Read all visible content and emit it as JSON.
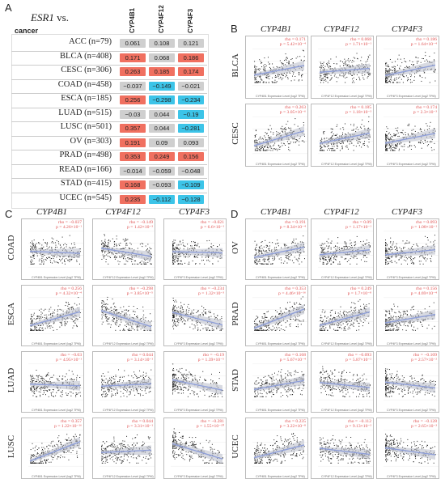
{
  "panel_letters": {
    "a": "A",
    "b": "B",
    "c": "C",
    "d": "D"
  },
  "heatmap": {
    "title_gene": "ESR1",
    "title_suffix": "vs.",
    "cancer_header": "cancer",
    "columns": [
      "CYP4B1",
      "CYP4F12",
      "CYP4F3"
    ],
    "rows": [
      {
        "label": "ACC (n=79)",
        "values": [
          "0.061",
          "0.108",
          "0.121"
        ],
        "colors": [
          "#cfcfcf",
          "#cfcfcf",
          "#cfcfcf"
        ]
      },
      {
        "label": "BLCA (n=408)",
        "values": [
          "0.171",
          "0.068",
          "0.186"
        ],
        "colors": [
          "#f07060",
          "#cfcfcf",
          "#f07060"
        ]
      },
      {
        "label": "CESC (n=306)",
        "values": [
          "0.263",
          "0.185",
          "0.174"
        ],
        "colors": [
          "#f07060",
          "#f07060",
          "#f07060"
        ]
      },
      {
        "label": "COAD (n=458)",
        "values": [
          "−0.037",
          "−0.149",
          "−0.021"
        ],
        "colors": [
          "#cfcfcf",
          "#3cc4e8",
          "#cfcfcf"
        ]
      },
      {
        "label": "ESCA (n=185)",
        "values": [
          "0.256",
          "−0.298",
          "−0.234"
        ],
        "colors": [
          "#f07060",
          "#3cc4e8",
          "#3cc4e8"
        ]
      },
      {
        "label": "LUAD (n=515)",
        "values": [
          "−0.03",
          "0.044",
          "−0.19"
        ],
        "colors": [
          "#cfcfcf",
          "#cfcfcf",
          "#3cc4e8"
        ]
      },
      {
        "label": "LUSC (n=501)",
        "values": [
          "0.357",
          "0.044",
          "−0.281"
        ],
        "colors": [
          "#f07060",
          "#cfcfcf",
          "#3cc4e8"
        ]
      },
      {
        "label": "OV (n=303)",
        "values": [
          "0.191",
          "0.09",
          "0.093"
        ],
        "colors": [
          "#f07060",
          "#cfcfcf",
          "#cfcfcf"
        ]
      },
      {
        "label": "PRAD (n=498)",
        "values": [
          "0.353",
          "0.249",
          "0.156"
        ],
        "colors": [
          "#f07060",
          "#f07060",
          "#f07060"
        ]
      },
      {
        "label": "READ (n=166)",
        "values": [
          "−0.014",
          "−0.059",
          "−0.048"
        ],
        "colors": [
          "#cfcfcf",
          "#cfcfcf",
          "#cfcfcf"
        ]
      },
      {
        "label": "STAD (n=415)",
        "values": [
          "0.168",
          "−0.093",
          "−0.109"
        ],
        "colors": [
          "#f07060",
          "#cfcfcf",
          "#3cc4e8"
        ]
      },
      {
        "label": "UCEC (n=545)",
        "values": [
          "0.235",
          "−0.112",
          "−0.128"
        ],
        "colors": [
          "#f07060",
          "#3cc4e8",
          "#3cc4e8"
        ]
      }
    ]
  },
  "gene_headers": [
    "CYP4B1",
    "CYP4F12",
    "CYP4F3"
  ],
  "x_axis_labels": [
    "CYP4B1 Expression Level (log2 TPM)",
    "CYP4F12 Expression Level (log2 TPM)",
    "CYP4F3 Expression Level (log2 TPM)"
  ],
  "y_axis_label": "ESR1 Expression Level (log2 TPM)",
  "panel_b": {
    "rows": [
      {
        "label": "BLCA",
        "stats": [
          {
            "rho": "rho = 0.171",
            "p": "p = 5.42×10⁻⁴"
          },
          {
            "rho": "rho = 0.068",
            "p": "p = 1.71×10⁻¹"
          },
          {
            "rho": "rho = 0.186",
            "p": "p = 1.64×10⁻⁴"
          }
        ]
      },
      {
        "label": "CESC",
        "stats": [
          {
            "rho": "rho = 0.263",
            "p": "p = 3.05×10⁻⁶"
          },
          {
            "rho": "rho = 0.185",
            "p": "p = 1.18×10⁻³"
          },
          {
            "rho": "rho = 0.174",
            "p": "p = 2.3×10⁻³"
          }
        ]
      }
    ]
  },
  "panel_c": {
    "rows": [
      {
        "label": "COAD",
        "stats": [
          {
            "rho": "rho = −0.037",
            "p": "p = 4.26×10⁻¹"
          },
          {
            "rho": "rho = −0.149",
            "p": "p = 1.42×10⁻³"
          },
          {
            "rho": "rho = −0.021",
            "p": "p = 6.6×10⁻¹"
          }
        ]
      },
      {
        "label": "ESCA",
        "stats": [
          {
            "rho": "rho = 0.256",
            "p": "p = 4.32×10⁻⁴"
          },
          {
            "rho": "rho = −0.298",
            "p": "p = 3.85×10⁻⁵"
          },
          {
            "rho": "rho = −0.234",
            "p": "p = 1.32×10⁻³"
          }
        ]
      },
      {
        "label": "LUAD",
        "stats": [
          {
            "rho": "rho = −0.03",
            "p": "p = 4.95×10⁻¹"
          },
          {
            "rho": "rho = 0.044",
            "p": "p = 3.14×10⁻¹"
          },
          {
            "rho": "rho = −0.19",
            "p": "p = 1.39×10⁻⁵"
          }
        ]
      },
      {
        "label": "LUSC",
        "stats": [
          {
            "rho": "rho = 0.357",
            "p": "p = 1.22×10⁻¹⁶"
          },
          {
            "rho": "rho = 0.044",
            "p": "p = 3.31×10⁻¹"
          },
          {
            "rho": "rho = −0.281",
            "p": "p = 1.55×10⁻¹⁰"
          }
        ]
      }
    ]
  },
  "panel_d": {
    "rows": [
      {
        "label": "OV",
        "stats": [
          {
            "rho": "rho = 0.191",
            "p": "p = 8.34×10⁻⁴"
          },
          {
            "rho": "rho = 0.09",
            "p": "p = 1.17×10⁻¹"
          },
          {
            "rho": "rho = 0.093",
            "p": "p = 1.08×10⁻¹"
          }
        ]
      },
      {
        "label": "PRAD",
        "stats": [
          {
            "rho": "rho = 0.353",
            "p": "p = 4.46×10⁻¹⁶"
          },
          {
            "rho": "rho = 0.249",
            "p": "p = 1.7×10⁻⁸"
          },
          {
            "rho": "rho = 0.156",
            "p": "p = 4.69×10⁻⁴"
          }
        ]
      },
      {
        "label": "STAD",
        "stats": [
          {
            "rho": "rho = 0.168",
            "p": "p = 5.67×10⁻⁴"
          },
          {
            "rho": "rho = −0.093",
            "p": "p = 5.87×10⁻²"
          },
          {
            "rho": "rho = −0.109",
            "p": "p = 2.57×10⁻²"
          }
        ]
      },
      {
        "label": "UCEC",
        "stats": [
          {
            "rho": "rho = 0.235",
            "p": "p = 3.22×10⁻⁸"
          },
          {
            "rho": "rho = −0.112",
            "p": "p = 9.13×10⁻³"
          },
          {
            "rho": "rho = −0.128",
            "p": "p = 2.65×10⁻³"
          }
        ]
      }
    ]
  },
  "colors": {
    "positive": "#f07060",
    "negative": "#3cc4e8",
    "neutral": "#cfcfcf",
    "fit_line": "#8f9fd8",
    "stat_text": "#e05050"
  }
}
